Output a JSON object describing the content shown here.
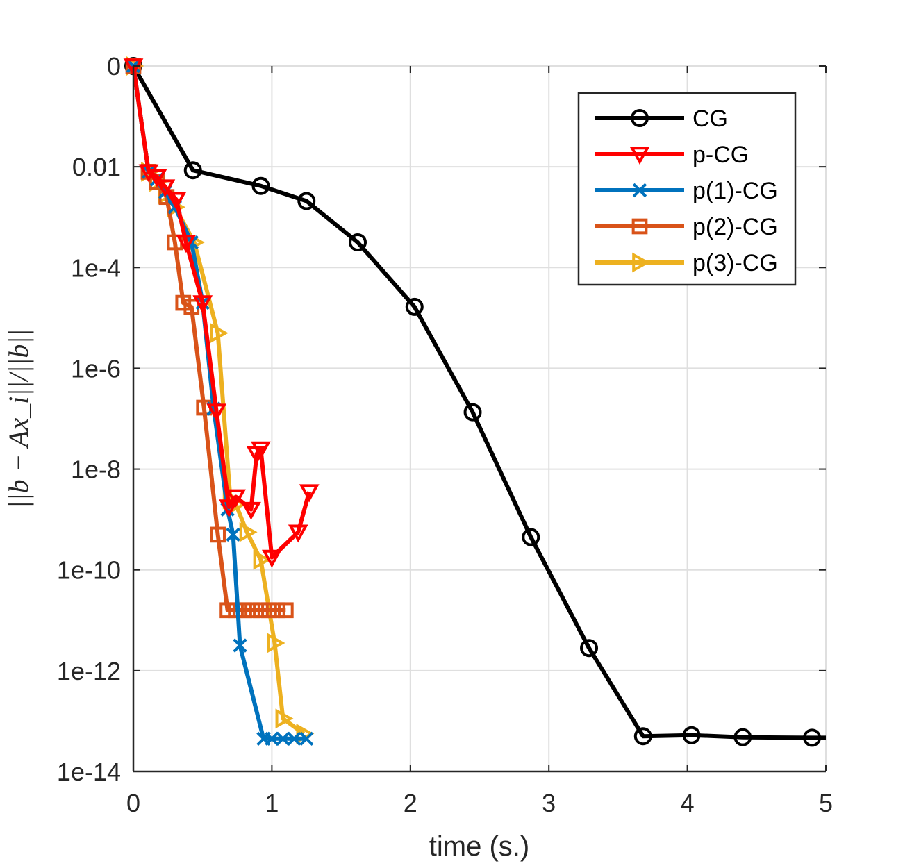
{
  "chart_data": {
    "type": "line",
    "xlabel": "time (s.)",
    "ylabel": "||b − Ax_i||/||b||",
    "xlim": [
      0,
      5
    ],
    "ylim_log10": [
      -14,
      0
    ],
    "y_scale": "log",
    "x_ticks": [
      0,
      1,
      2,
      3,
      4,
      5
    ],
    "x_tick_labels": [
      "0",
      "1",
      "2",
      "3",
      "4",
      "5"
    ],
    "y_ticks_log10": [
      0,
      -2,
      -4,
      -6,
      -8,
      -10,
      -12,
      -14
    ],
    "y_tick_labels": [
      "0",
      "0.01",
      "1e-4",
      "1e-6",
      "1e-8",
      "1e-10",
      "1e-12",
      "1e-14"
    ],
    "grid": true,
    "legend_position": "top-right",
    "series": [
      {
        "name": "CG",
        "color": "#000000",
        "marker": "circle",
        "x": [
          0.0,
          0.43,
          0.92,
          1.25,
          1.62,
          2.03,
          2.45,
          2.87,
          3.29,
          3.68,
          4.03,
          4.4,
          4.9,
          5.0
        ],
        "y_log10": [
          0,
          -2.07,
          -2.38,
          -2.68,
          -3.5,
          -4.78,
          -6.87,
          -9.35,
          -11.55,
          -13.3,
          -13.28,
          -13.32,
          -13.33,
          -13.33
        ]
      },
      {
        "name": "p-CG",
        "color": "#ff0000",
        "marker": "triangle-down",
        "x": [
          0.0,
          0.11,
          0.17,
          0.23,
          0.31,
          0.38,
          0.5,
          0.6,
          0.69,
          0.74,
          0.85,
          0.89,
          0.92,
          1.0,
          1.19,
          1.27
        ],
        "y_log10": [
          0,
          -2.1,
          -2.2,
          -2.4,
          -2.65,
          -3.5,
          -4.7,
          -6.85,
          -8.75,
          -8.55,
          -8.8,
          -7.7,
          -7.6,
          -9.75,
          -9.25,
          -8.45
        ]
      },
      {
        "name": "p(1)-CG",
        "color": "#0072bd",
        "marker": "x",
        "x": [
          0.0,
          0.11,
          0.17,
          0.23,
          0.3,
          0.42,
          0.5,
          0.58,
          0.68,
          0.72,
          0.77,
          0.94,
          1.0,
          1.08,
          1.16,
          1.25
        ],
        "y_log10": [
          0,
          -2.1,
          -2.25,
          -2.5,
          -2.8,
          -3.5,
          -4.7,
          -6.8,
          -8.8,
          -9.3,
          -11.5,
          -13.35,
          -13.35,
          -13.35,
          -13.35,
          -13.35
        ]
      },
      {
        "name": "p(2)-CG",
        "color": "#d95319",
        "marker": "square",
        "x": [
          0.0,
          0.11,
          0.17,
          0.24,
          0.3,
          0.36,
          0.42,
          0.51,
          0.61,
          0.68,
          0.74,
          0.8,
          0.86,
          0.92,
          0.98,
          1.04,
          1.1
        ],
        "y_log10": [
          0,
          -2.1,
          -2.3,
          -2.6,
          -3.5,
          -4.7,
          -4.78,
          -6.78,
          -9.3,
          -10.8,
          -10.8,
          -10.8,
          -10.8,
          -10.8,
          -10.8,
          -10.8,
          -10.8
        ]
      },
      {
        "name": "p(3)-CG",
        "color": "#edb120",
        "marker": "triangle-right",
        "x": [
          0.0,
          0.11,
          0.17,
          0.23,
          0.3,
          0.44,
          0.61,
          0.7,
          0.74,
          0.82,
          0.92,
          1.02,
          1.08,
          1.23
        ],
        "y_log10": [
          0,
          -2.1,
          -2.3,
          -2.55,
          -2.8,
          -3.5,
          -5.3,
          -8.6,
          -8.7,
          -9.25,
          -9.8,
          -11.45,
          -12.95,
          -13.25
        ]
      }
    ]
  }
}
